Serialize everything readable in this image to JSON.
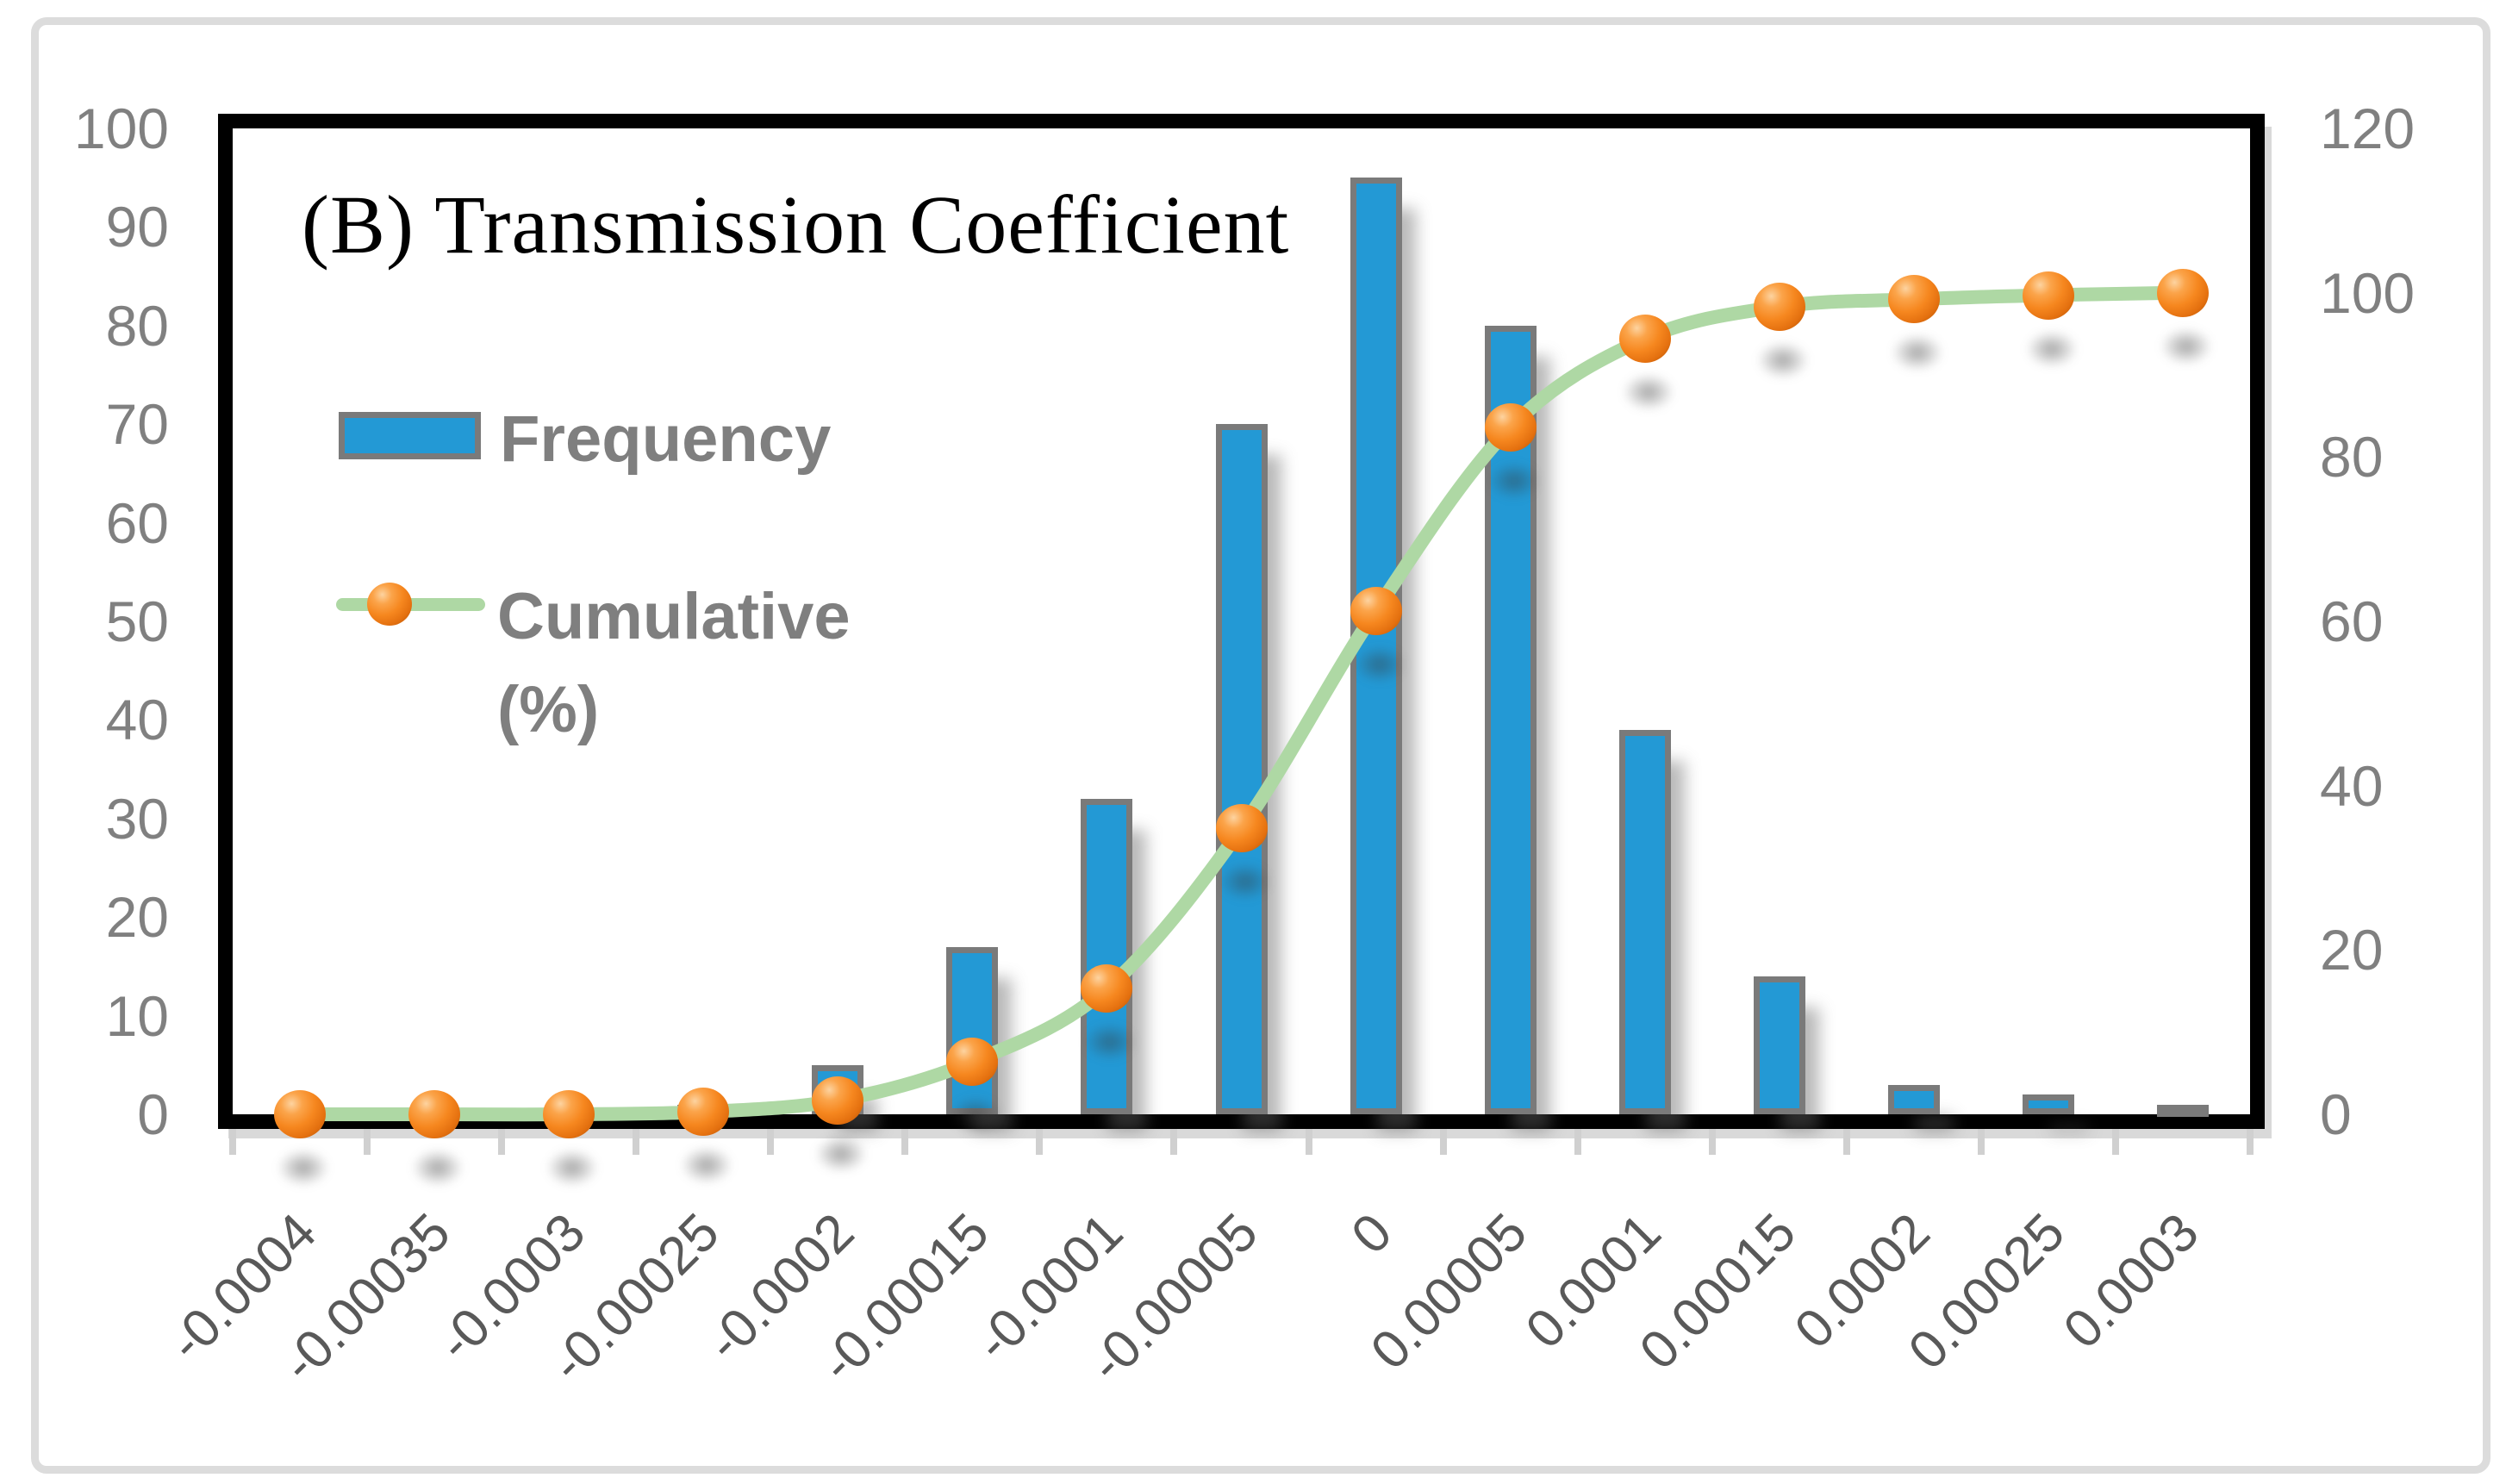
{
  "figure": {
    "title": "(B) Transmission Coefficient"
  },
  "legend": {
    "frequency_label": "Frequency",
    "cumulative_label": "Cumulative (%)",
    "cumulative_line1": "Cumulative",
    "cumulative_line2": "(%)"
  },
  "colors": {
    "bar_fill": "#2399d5",
    "bar_border": "#7a7a7a",
    "line_green": "#aed8a4",
    "marker_orange": "#f6871f",
    "axis_label_gray": "#808080",
    "x_label_gray": "#595959",
    "frame_black": "#000000",
    "frame_shadow_gray": "#d9d9d9",
    "outer_border_gray": "#dcdcdc"
  },
  "chart_data": {
    "type": "bar",
    "subtype": "pareto-histogram with cumulative percentage line",
    "title": "(B) Transmission Coefficient",
    "categories": [
      "-0.0004",
      "-0.00035",
      "-0.0003",
      "-0.00025",
      "-0.0002",
      "-0.00015",
      "-0.0001",
      "-0.00005",
      "0",
      "0.00005",
      "0.0001",
      "0.00015",
      "0.0002",
      "0.00025",
      "0.0003"
    ],
    "series": [
      {
        "name": "Frequency",
        "type": "bar",
        "axis": "left",
        "values": [
          0,
          0,
          0,
          1,
          5,
          17,
          32,
          70,
          95,
          80,
          39,
          14,
          3,
          2,
          1
        ]
      },
      {
        "name": "Cumulative (%)",
        "type": "line",
        "axis": "right",
        "smooth": true,
        "values": [
          0,
          0,
          0,
          0.3,
          1.7,
          6.4,
          15.3,
          34.8,
          61.3,
          83.6,
          94.4,
          98.3,
          99.2,
          99.7,
          100
        ]
      }
    ],
    "left_axis": {
      "min": 0,
      "max": 100,
      "step": 10,
      "ticks": [
        "0",
        "10",
        "20",
        "30",
        "40",
        "50",
        "60",
        "70",
        "80",
        "90",
        "100"
      ]
    },
    "right_axis": {
      "min": 0,
      "max": 120,
      "step": 20,
      "ticks": [
        "0",
        "20",
        "40",
        "60",
        "80",
        "100",
        "120"
      ]
    },
    "xlabel": "",
    "ylabel": "",
    "grid": false,
    "legend_position": "inside top-left",
    "x_tick_rotation_deg": 45
  }
}
